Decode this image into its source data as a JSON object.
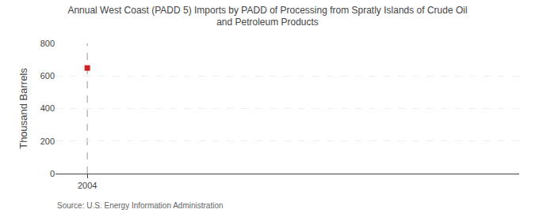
{
  "chart_data": {
    "type": "scatter",
    "title": "Annual West Coast (PADD 5) Imports by PADD of Processing from Spratly Islands of Crude Oil\nand Petroleum Products",
    "y_label": "Thousand Barrels",
    "annotations": [
      "Source: U.S. Energy Information Administration"
    ],
    "x": [
      2004
    ],
    "values": [
      649
    ],
    "color": "#cc2222",
    "marker": "square",
    "xlim": [
      2003.3,
      2013.5
    ],
    "xticks": [
      2004
    ],
    "ylim": [
      0,
      800
    ],
    "yticks": [
      0,
      200,
      400,
      600,
      800
    ],
    "grid": true
  }
}
